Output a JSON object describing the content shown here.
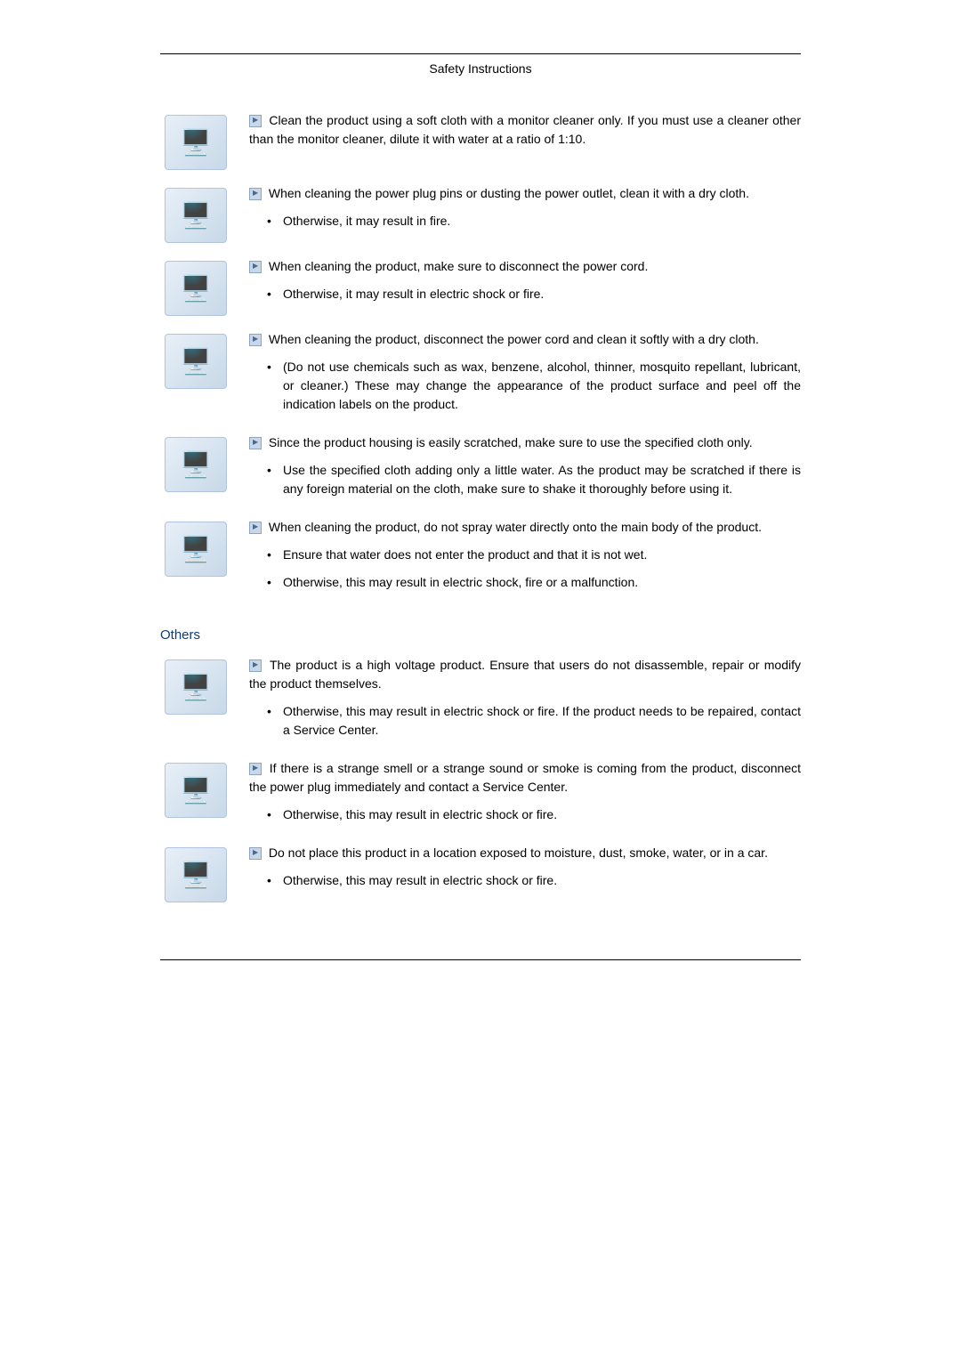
{
  "header": {
    "title": "Safety Instructions"
  },
  "cleaning": {
    "items": [
      {
        "main": "Clean the product using a soft cloth with a monitor cleaner only. If you must use a cleaner other than the monitor cleaner, dilute it with water at a ratio of 1:10.",
        "bullets": []
      },
      {
        "main": "When cleaning the power plug pins or dusting the power outlet, clean it with a dry cloth.",
        "bullets": [
          "Otherwise, it may result in fire."
        ]
      },
      {
        "main": "When cleaning the product, make sure to disconnect the power cord.",
        "bullets": [
          "Otherwise, it may result in electric shock or fire."
        ]
      },
      {
        "main": "When cleaning the product, disconnect the power cord and clean it softly with a dry cloth.",
        "bullets": [
          "(Do not use chemicals such as wax, benzene, alcohol, thinner, mosquito repellant, lubricant, or cleaner.) These may change the appearance of the product surface and peel off the indication labels on the product."
        ]
      },
      {
        "main": "Since the product housing is easily scratched, make sure to use the specified cloth only.",
        "bullets": [
          "Use the specified cloth adding only a little water. As the product may be scratched if there is any foreign material on the cloth, make sure to shake it thoroughly before using it."
        ]
      },
      {
        "main": "When cleaning the product, do not spray water directly onto the main body of the product.",
        "bullets": [
          "Ensure that water does not enter the product and that it is not wet.",
          "Otherwise, this may result in electric shock, fire or a malfunction."
        ]
      }
    ]
  },
  "others": {
    "heading": "Others",
    "items": [
      {
        "main": "The product is a high voltage product. Ensure that users do not disassemble, repair or modify the product themselves.",
        "bullets": [
          "Otherwise, this may result in electric shock or fire. If the product needs to be repaired, contact a Service Center."
        ]
      },
      {
        "main": "If there is a strange smell or a strange sound or smoke is coming from the product, disconnect the power plug immediately and contact a Service Center.",
        "bullets": [
          "Otherwise, this may result in electric shock or fire."
        ]
      },
      {
        "main": "Do not place this product in a location exposed to moisture, dust, smoke, water, or in a car.",
        "bullets": [
          "Otherwise, this may result in electric shock or fire."
        ]
      }
    ]
  },
  "colors": {
    "heading_color": "#0a3d7a",
    "text_color": "#000000",
    "background": "#ffffff",
    "icon_bg_start": "#e8f0f8",
    "icon_bg_end": "#c8d8e8",
    "icon_border": "#b0c4de"
  },
  "typography": {
    "body_font_size": 14,
    "heading_font_size": 15,
    "header_font_size": 14
  }
}
